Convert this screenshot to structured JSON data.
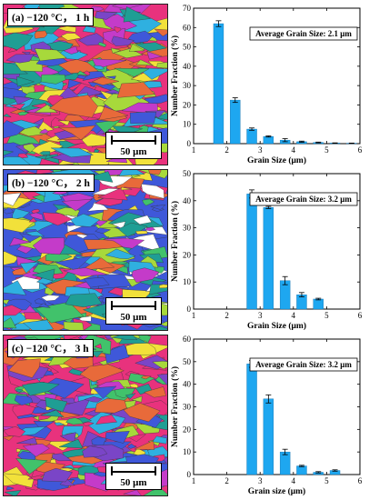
{
  "panels": [
    {
      "label": "(a) −120 °C， 1 h",
      "scale_bar": "50 μm",
      "map_palette": [
        "#e8327d",
        "#3f58d9",
        "#2fb0e0",
        "#41c26b",
        "#f2e13a",
        "#c43bc9",
        "#7a45c7",
        "#e86a3a",
        "#1f9e94",
        "#a7d93b"
      ],
      "chart_data": {
        "type": "bar",
        "title": "",
        "xlabel": "Grain Size (μm)",
        "ylabel": "Number Fraction (%)",
        "xlim": [
          1,
          6
        ],
        "ylim": [
          0,
          70
        ],
        "xticks": [
          1,
          2,
          3,
          4,
          5,
          6
        ],
        "yticks": [
          0,
          10,
          20,
          30,
          40,
          50,
          60,
          70
        ],
        "bar_color": "#1ea7f0",
        "grid": false,
        "x": [
          1.75,
          2.25,
          2.75,
          3.25,
          3.75,
          4.25,
          4.75,
          5.25,
          5.75
        ],
        "values": [
          62,
          22.5,
          7.5,
          3.7,
          1.8,
          1.0,
          0.6,
          0.3,
          0.2
        ],
        "errors": [
          1.5,
          1.2,
          0.6,
          0.3,
          0.8,
          0.3,
          0.2,
          0.1,
          0.1
        ],
        "annotation": "Average Grain Size: 2.1 μm"
      }
    },
    {
      "label": "(b) −120 °C， 2 h",
      "scale_bar": "50 μm",
      "map_palette": [
        "#3f58d9",
        "#e8327d",
        "#41c26b",
        "#2fb0e0",
        "#f2e13a",
        "#c43bc9",
        "#a7d93b",
        "#e86a3a",
        "#1f9e94",
        "#ffffff"
      ],
      "chart_data": {
        "type": "bar",
        "title": "",
        "xlabel": "Grain Size (μm)",
        "ylabel": "Number Fraction (%)",
        "xlim": [
          1,
          6
        ],
        "ylim": [
          0,
          50
        ],
        "xticks": [
          1,
          2,
          3,
          4,
          5,
          6
        ],
        "yticks": [
          0,
          10,
          20,
          30,
          40,
          50
        ],
        "bar_color": "#1ea7f0",
        "grid": false,
        "x": [
          2.75,
          3.25,
          3.75,
          4.25,
          4.75
        ],
        "values": [
          42.5,
          37.5,
          10.5,
          5.3,
          3.7
        ],
        "errors": [
          1.5,
          0.4,
          1.5,
          0.8,
          0.3
        ],
        "annotation": "Average Grain Size: 3.2 μm"
      }
    },
    {
      "label": "(c) −120 °C， 3 h",
      "scale_bar": "50 μm",
      "map_palette": [
        "#e8327d",
        "#2fb0e0",
        "#3f58d9",
        "#41c26b",
        "#f2e13a",
        "#c43bc9",
        "#e86a3a",
        "#7a45c7",
        "#a7d93b",
        "#1f9e94"
      ],
      "chart_data": {
        "type": "bar",
        "title": "",
        "xlabel": "Grain size (μm)",
        "ylabel": "Number Fraction (%)",
        "xlim": [
          1,
          6
        ],
        "ylim": [
          0,
          60
        ],
        "xticks": [
          1,
          2,
          3,
          4,
          5,
          6
        ],
        "yticks": [
          0,
          10,
          20,
          30,
          40,
          50,
          60
        ],
        "bar_color": "#1ea7f0",
        "grid": false,
        "x": [
          2.75,
          3.25,
          3.75,
          4.25,
          4.75,
          5.25
        ],
        "values": [
          49,
          33.5,
          10,
          3.8,
          1.0,
          1.8
        ],
        "errors": [
          1.5,
          1.8,
          1.2,
          0.3,
          0.3,
          0.3
        ],
        "annotation": "Average Grain Size: 3.2  μm"
      }
    }
  ]
}
